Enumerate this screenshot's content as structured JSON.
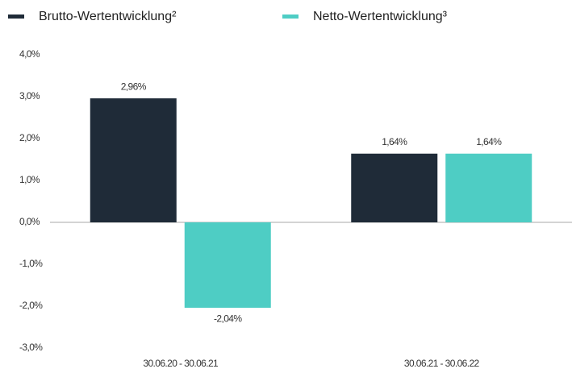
{
  "chart_data": {
    "type": "bar",
    "categories": [
      "30.06.20 - 30.06.21",
      "30.06.21 - 30.06.22"
    ],
    "series": [
      {
        "name": "Brutto-Wertentwicklung²",
        "color": "#1f2b38",
        "values": [
          2.96,
          1.64
        ],
        "value_labels": [
          "2,96%",
          "1,64%"
        ]
      },
      {
        "name": "Netto-Wertentwicklung³",
        "color": "#4ecdc4",
        "values": [
          -2.04,
          1.64
        ],
        "value_labels": [
          "-2,04%",
          "1,64%"
        ]
      }
    ],
    "ylim": [
      -3,
      4
    ],
    "yticks": [
      {
        "value": 4,
        "label": "4,0%"
      },
      {
        "value": 3,
        "label": "3,0%"
      },
      {
        "value": 2,
        "label": "2,0%"
      },
      {
        "value": 1,
        "label": "1,0%"
      },
      {
        "value": 0,
        "label": "0,0%"
      },
      {
        "value": -1,
        "label": "-1,0%"
      },
      {
        "value": -2,
        "label": "-2,0%"
      },
      {
        "value": -3,
        "label": "-3,0%"
      }
    ],
    "legend": "top"
  }
}
